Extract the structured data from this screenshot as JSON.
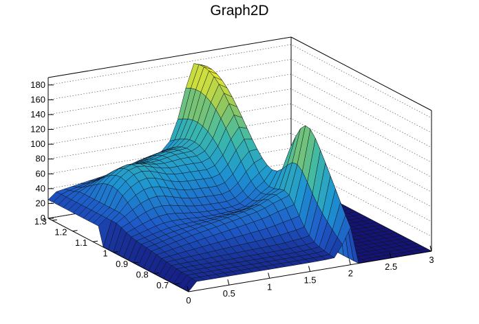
{
  "chart_data": {
    "type": "surface",
    "title": "Graph2D",
    "xlabel": "",
    "ylabel": "",
    "zlabel": "",
    "x_ticks": [
      "0",
      "0.5",
      "1",
      "1.5",
      "2",
      "2.5",
      "3"
    ],
    "y_ticks": [
      "0.7",
      "0.8",
      "0.9",
      "1",
      "1.1",
      "1.2",
      "1.3"
    ],
    "z_ticks": [
      "0",
      "20",
      "40",
      "60",
      "80",
      "100",
      "120",
      "140",
      "160",
      "180"
    ],
    "xlim": [
      0,
      3
    ],
    "ylim": [
      0.63,
      1.32
    ],
    "zlim": [
      0,
      190
    ],
    "colormap": "viridis-like (blue to yellow)",
    "grid": true,
    "peaks": [
      {
        "x": 1.85,
        "y": 1.3,
        "z": 180
      },
      {
        "x": 2.0,
        "y": 0.8,
        "z": 150
      }
    ],
    "series": [
      {
        "values_by_x": {
          "x": [
            0,
            0.5,
            1.0,
            1.5,
            1.8,
            2.0,
            2.5,
            3.0
          ],
          "ridge_z_high_y": [
            50,
            100,
            115,
            135,
            180,
            0,
            0,
            0
          ],
          "ridge_z_low_y": [
            0,
            30,
            45,
            60,
            90,
            150,
            0,
            0
          ]
        }
      }
    ]
  }
}
